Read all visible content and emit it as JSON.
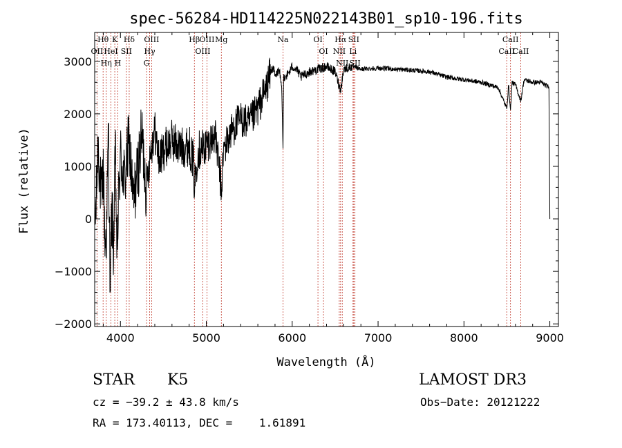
{
  "chart_data": {
    "type": "line",
    "title": "spec-56284-HD114225N022143B01_sp10-196.fits",
    "xlabel": "Wavelength (Å)",
    "ylabel": "Flux (relative)",
    "xlim": [
      3700,
      9100
    ],
    "ylim": [
      -2050,
      3550
    ],
    "xticks": [
      4000,
      5000,
      6000,
      7000,
      8000,
      9000
    ],
    "yticks": [
      -2000,
      -1000,
      0,
      1000,
      2000,
      3000
    ],
    "series": [
      {
        "name": "flux",
        "x": [
          3700,
          3720,
          3740,
          3760,
          3780,
          3800,
          3820,
          3840,
          3860,
          3880,
          3900,
          3920,
          3940,
          3960,
          3980,
          4000,
          4050,
          4100,
          4150,
          4200,
          4250,
          4300,
          4350,
          4400,
          4450,
          4500,
          4600,
          4700,
          4800,
          4850,
          4861,
          4900,
          5000,
          5100,
          5150,
          5175,
          5200,
          5300,
          5400,
          5500,
          5600,
          5700,
          5750,
          5780,
          5800,
          5850,
          5880,
          5893,
          5900,
          5950,
          6000,
          6050,
          6100,
          6200,
          6300,
          6400,
          6500,
          6563,
          6600,
          6700,
          6800,
          7000,
          7200,
          7400,
          7600,
          7800,
          8000,
          8200,
          8400,
          8498,
          8520,
          8542,
          8560,
          8600,
          8662,
          8700,
          8800,
          8900,
          8990,
          9000
        ],
        "y": [
          -200,
          400,
          1500,
          800,
          300,
          1000,
          -500,
          -200,
          1800,
          -1300,
          200,
          -600,
          1300,
          -700,
          400,
          1200,
          700,
          1500,
          300,
          900,
          1600,
          600,
          1300,
          1700,
          1100,
          1300,
          1500,
          1350,
          1400,
          1100,
          600,
          1300,
          1400,
          1600,
          1000,
          500,
          1300,
          1700,
          1900,
          1800,
          2100,
          2500,
          2800,
          2900,
          2700,
          2850,
          2400,
          1300,
          2700,
          2750,
          2900,
          2850,
          2700,
          2800,
          2850,
          2900,
          2800,
          2450,
          2850,
          2900,
          2850,
          2870,
          2850,
          2830,
          2800,
          2700,
          2650,
          2600,
          2500,
          2100,
          2550,
          2050,
          2600,
          2550,
          2250,
          2650,
          2600,
          2600,
          2500,
          0
        ]
      }
    ],
    "lines": [
      {
        "name": "Hθ",
        "x": 3798
      },
      {
        "name": "OII",
        "x": 3727
      },
      {
        "name": "Hη",
        "x": 3835
      },
      {
        "name": "K",
        "x": 3934
      },
      {
        "name": "HeI",
        "x": 3889
      },
      {
        "name": "H",
        "x": 3969
      },
      {
        "name": "Hδ",
        "x": 4102
      },
      {
        "name": "SII",
        "x": 4069
      },
      {
        "name": "OIII",
        "x": 4363
      },
      {
        "name": "Hγ",
        "x": 4340
      },
      {
        "name": "G",
        "x": 4304
      },
      {
        "name": "Hβ",
        "x": 4861
      },
      {
        "name": "OIII",
        "x": 5007
      },
      {
        "name": "OIII",
        "x": 4959
      },
      {
        "name": "Mg",
        "x": 5175
      },
      {
        "name": "Na",
        "x": 5893
      },
      {
        "name": "OI",
        "x": 6300
      },
      {
        "name": "OI",
        "x": 6364
      },
      {
        "name": "Hα",
        "x": 6563
      },
      {
        "name": "NII",
        "x": 6548
      },
      {
        "name": "NII",
        "x": 6583
      },
      {
        "name": "SII",
        "x": 6717
      },
      {
        "name": "Li",
        "x": 6708
      },
      {
        "name": "SII",
        "x": 6731
      },
      {
        "name": "CaII",
        "x": 8542
      },
      {
        "name": "CaII",
        "x": 8498
      },
      {
        "name": "CaII",
        "x": 8662
      }
    ]
  },
  "info": {
    "class": "STAR",
    "subclass": "K5",
    "survey": "LAMOST DR3",
    "cz": "cz = −39.2 ± 43.8 km/s",
    "obs_date": "Obs−Date: 20121222",
    "radec": "RA = 173.40113, DEC =    1.61891"
  }
}
